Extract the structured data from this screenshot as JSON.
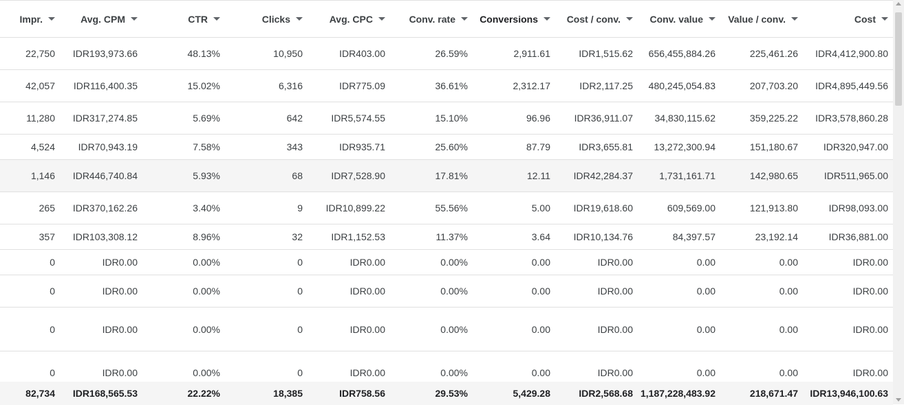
{
  "table": {
    "columns": [
      {
        "label": "Impr."
      },
      {
        "label": "Avg. CPM"
      },
      {
        "label": "CTR"
      },
      {
        "label": "Clicks"
      },
      {
        "label": "Avg. CPC"
      },
      {
        "label": "Conv. rate"
      },
      {
        "label": "Conversions",
        "sorted": true
      },
      {
        "label": "Cost / conv."
      },
      {
        "label": "Conv. value"
      },
      {
        "label": "Value / conv."
      },
      {
        "label": "Cost"
      }
    ],
    "rows": [
      [
        "22,750",
        "IDR193,973.66",
        "48.13%",
        "10,950",
        "IDR403.00",
        "26.59%",
        "2,911.61",
        "IDR1,515.62",
        "656,455,884.26",
        "225,461.26",
        "IDR4,412,900.80"
      ],
      [
        "42,057",
        "IDR116,400.35",
        "15.02%",
        "6,316",
        "IDR775.09",
        "36.61%",
        "2,312.17",
        "IDR2,117.25",
        "480,245,054.83",
        "207,703.20",
        "IDR4,895,449.56"
      ],
      [
        "11,280",
        "IDR317,274.85",
        "5.69%",
        "642",
        "IDR5,574.55",
        "15.10%",
        "96.96",
        "IDR36,911.07",
        "34,830,115.62",
        "359,225.22",
        "IDR3,578,860.28"
      ],
      [
        "4,524",
        "IDR70,943.19",
        "7.58%",
        "343",
        "IDR935.71",
        "25.60%",
        "87.79",
        "IDR3,655.81",
        "13,272,300.94",
        "151,180.67",
        "IDR320,947.00"
      ],
      [
        "1,146",
        "IDR446,740.84",
        "5.93%",
        "68",
        "IDR7,528.90",
        "17.81%",
        "12.11",
        "IDR42,284.37",
        "1,731,161.71",
        "142,980.65",
        "IDR511,965.00"
      ],
      [
        "265",
        "IDR370,162.26",
        "3.40%",
        "9",
        "IDR10,899.22",
        "55.56%",
        "5.00",
        "IDR19,618.60",
        "609,569.00",
        "121,913.80",
        "IDR98,093.00"
      ],
      [
        "357",
        "IDR103,308.12",
        "8.96%",
        "32",
        "IDR1,152.53",
        "11.37%",
        "3.64",
        "IDR10,134.76",
        "84,397.57",
        "23,192.14",
        "IDR36,881.00"
      ],
      [
        "0",
        "IDR0.00",
        "0.00%",
        "0",
        "IDR0.00",
        "0.00%",
        "0.00",
        "IDR0.00",
        "0.00",
        "0.00",
        "IDR0.00"
      ],
      [
        "0",
        "IDR0.00",
        "0.00%",
        "0",
        "IDR0.00",
        "0.00%",
        "0.00",
        "IDR0.00",
        "0.00",
        "0.00",
        "IDR0.00"
      ],
      [
        "0",
        "IDR0.00",
        "0.00%",
        "0",
        "IDR0.00",
        "0.00%",
        "0.00",
        "IDR0.00",
        "0.00",
        "0.00",
        "IDR0.00"
      ],
      [
        "0",
        "IDR0.00",
        "0.00%",
        "0",
        "IDR0.00",
        "0.00%",
        "0.00",
        "IDR0.00",
        "0.00",
        "0.00",
        "IDR0.00"
      ]
    ],
    "highlighted_row": 4,
    "totals": [
      "82,734",
      "IDR168,565.53",
      "22.22%",
      "18,385",
      "IDR758.56",
      "29.53%",
      "5,429.28",
      "IDR2,568.68",
      "1,187,228,483.92",
      "218,671.47",
      "IDR13,946,100.63"
    ]
  },
  "icons": {
    "sort": "chevron-down-icon"
  },
  "colors": {
    "text": "#3c4043",
    "divider": "#e0e0e0",
    "highlight_bg": "#f5f5f5"
  }
}
